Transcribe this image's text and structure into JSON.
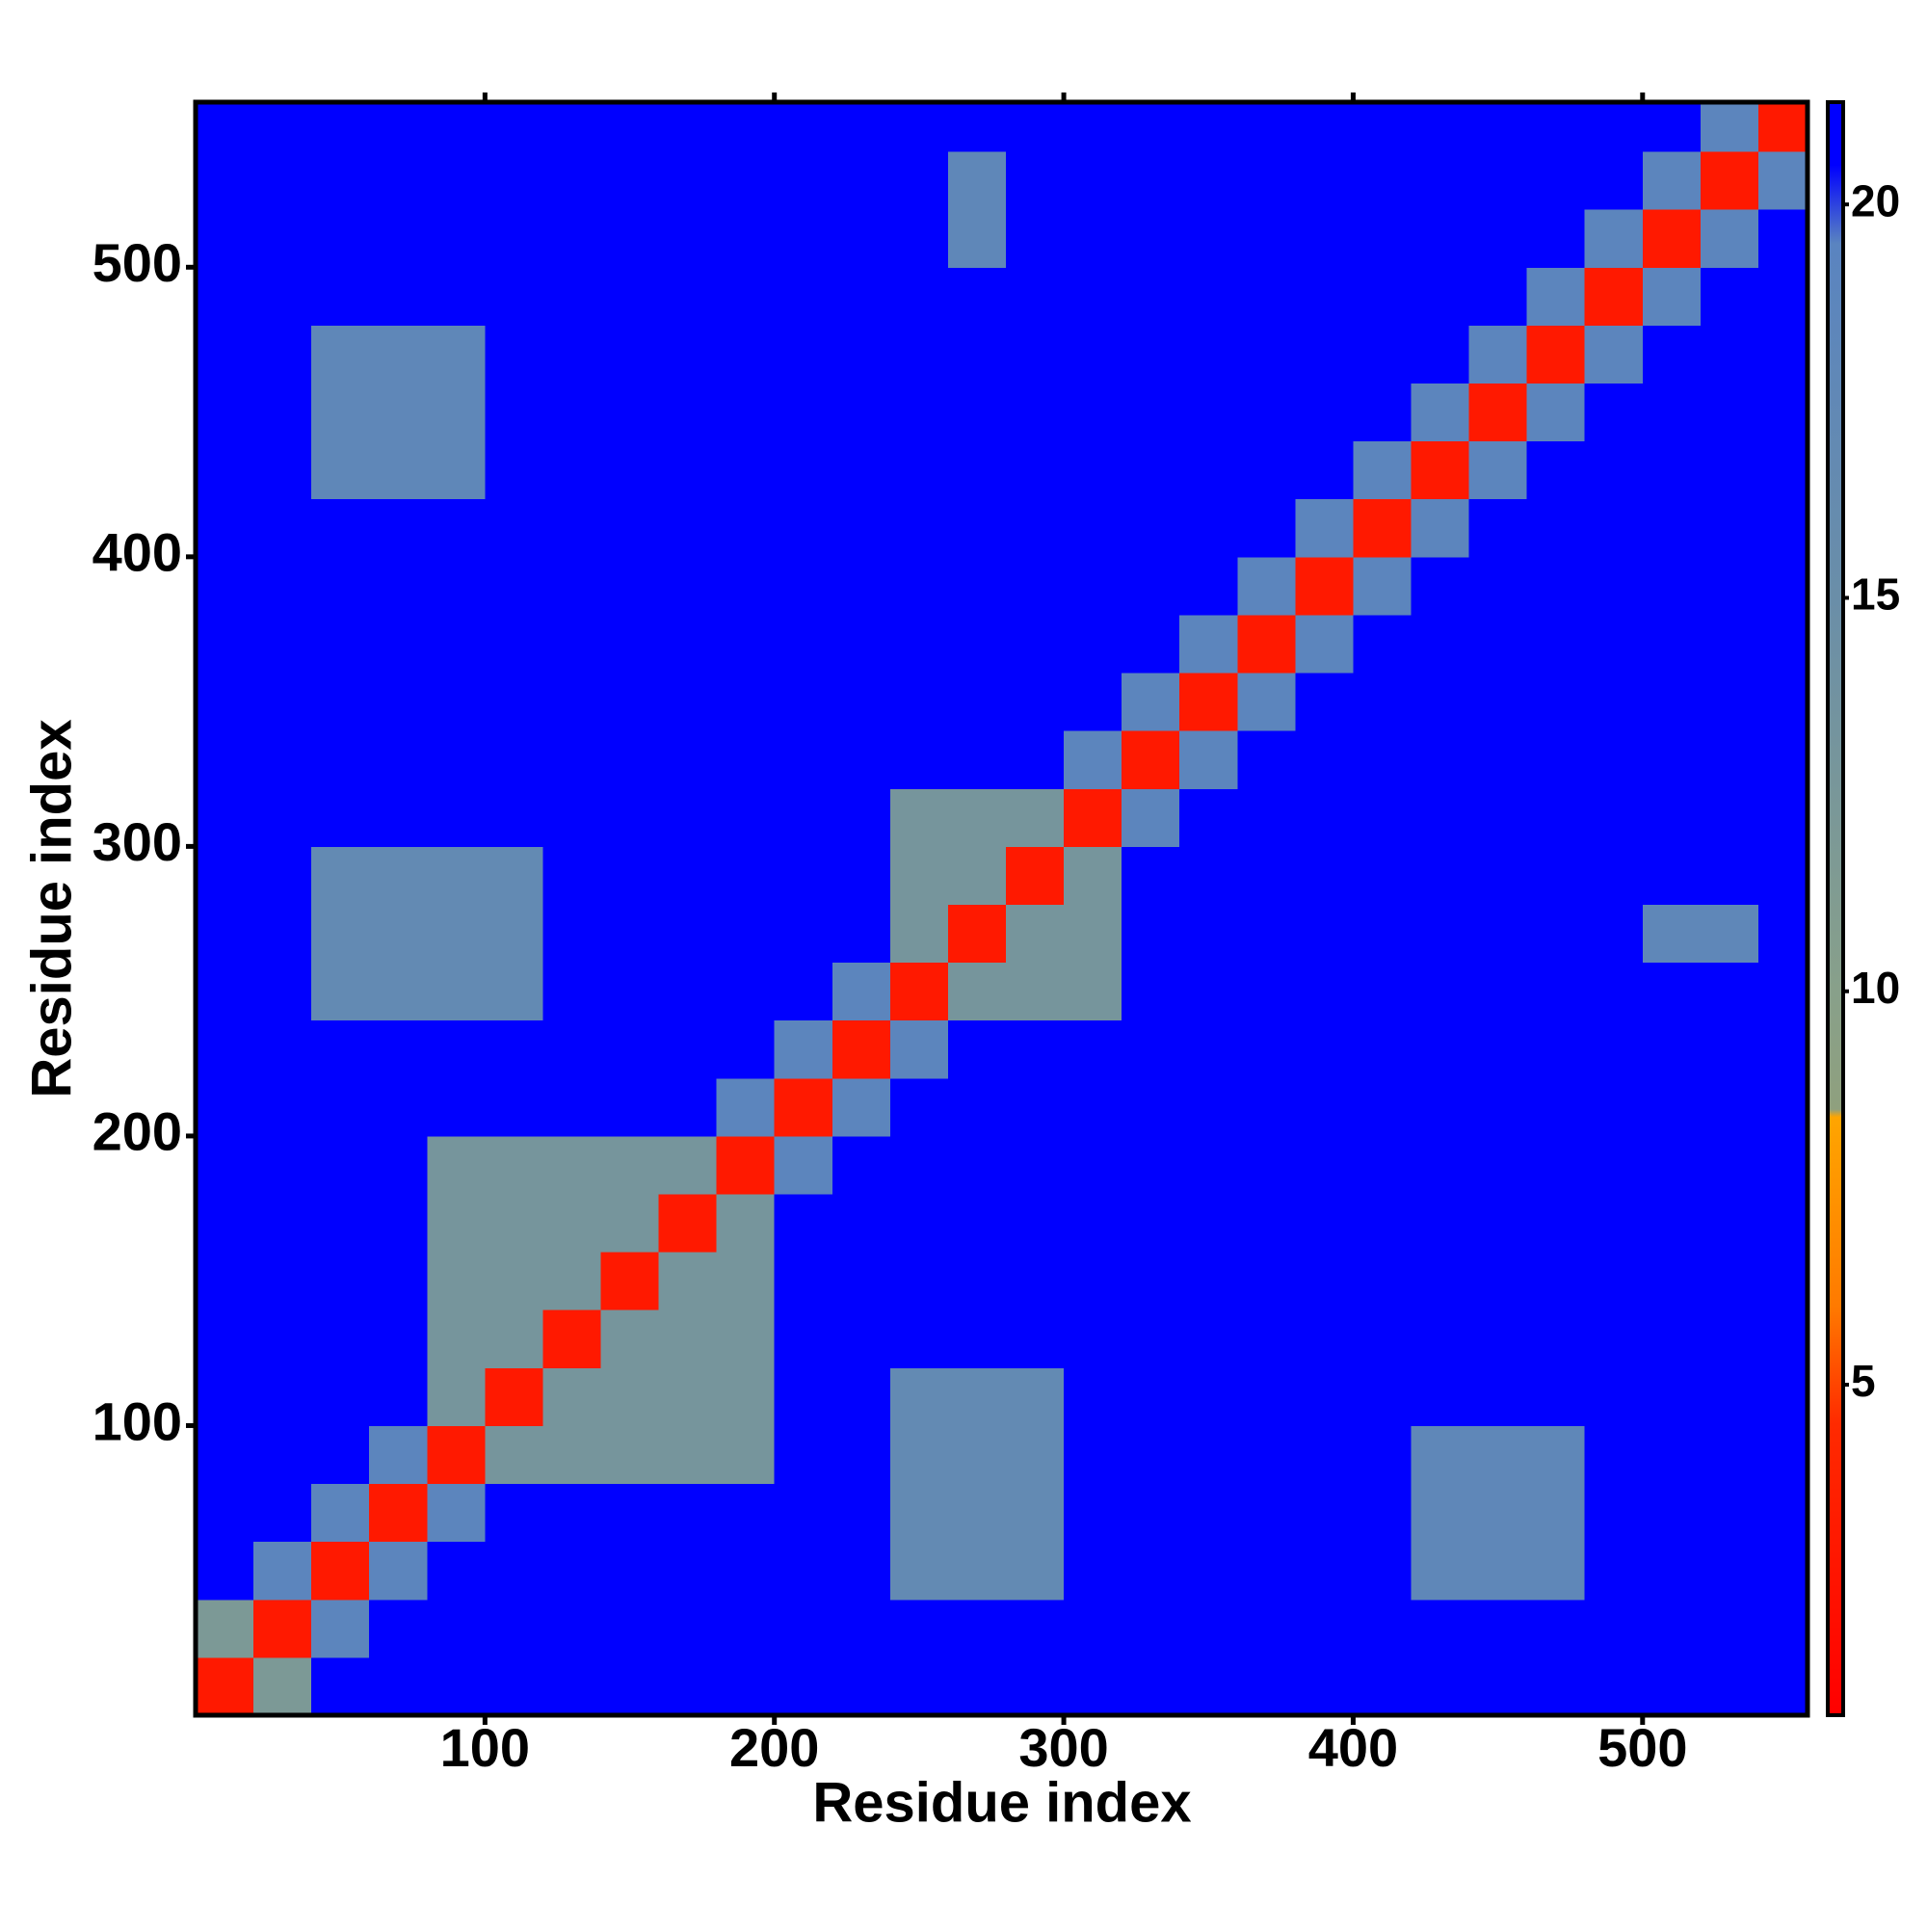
{
  "chart_data": {
    "type": "heatmap",
    "xlabel": "Residue index",
    "ylabel": "Residue index",
    "xlim": [
      0,
      557
    ],
    "ylim": [
      0,
      557
    ],
    "xticks": [
      100,
      200,
      300,
      400,
      500
    ],
    "yticks": [
      100,
      200,
      300,
      400,
      500
    ],
    "xbins": [
      0,
      20,
      40,
      60,
      80,
      100,
      120,
      140,
      160,
      180,
      200,
      220,
      240,
      260,
      280,
      300,
      320,
      340,
      360,
      380,
      400,
      420,
      440,
      460,
      480,
      500,
      520,
      540,
      557
    ],
    "ybins": [
      0,
      20,
      40,
      60,
      80,
      100,
      120,
      140,
      160,
      180,
      200,
      220,
      240,
      260,
      280,
      300,
      320,
      340,
      360,
      380,
      400,
      420,
      440,
      460,
      480,
      500,
      520,
      540,
      557
    ],
    "clim": [
      0.8,
      21.3
    ],
    "cticks": [
      5,
      10,
      15,
      20
    ],
    "colorscale": [
      {
        "value": 0.8,
        "color": "#ff0000"
      },
      {
        "value": 4.5,
        "color": "#ff2a00"
      },
      {
        "value": 6,
        "color": "#ff7a00"
      },
      {
        "value": 8.4,
        "color": "#ffa500"
      },
      {
        "value": 8.5,
        "color": "#8fa07e"
      },
      {
        "value": 10,
        "color": "#88a08a"
      },
      {
        "value": 15,
        "color": "#6a8ea8"
      },
      {
        "value": 19.5,
        "color": "#5a84c0"
      },
      {
        "value": 20.5,
        "color": "#0000ff"
      },
      {
        "value": 21.3,
        "color": "#0000ff"
      }
    ],
    "values": [
      [
        3,
        12,
        21,
        21,
        21,
        21,
        21,
        21,
        21,
        21,
        21,
        21,
        21,
        21,
        21,
        21,
        21,
        21,
        21,
        21,
        21,
        21,
        21,
        21,
        21,
        21,
        21,
        21
      ],
      [
        12,
        3,
        19,
        21,
        21,
        21,
        21,
        21,
        21,
        21,
        21,
        21,
        21,
        21,
        21,
        21,
        21,
        21,
        21,
        21,
        21,
        21,
        21,
        21,
        21,
        21,
        21,
        21
      ],
      [
        21,
        19,
        3,
        19,
        21,
        21,
        21,
        21,
        21,
        21,
        21,
        21,
        17,
        17,
        17,
        21,
        21,
        21,
        21,
        21,
        21,
        18,
        18,
        18,
        21,
        21,
        21,
        21
      ],
      [
        21,
        21,
        19,
        3,
        19,
        21,
        21,
        21,
        21,
        21,
        21,
        21,
        17,
        17,
        17,
        21,
        21,
        21,
        21,
        21,
        21,
        18,
        18,
        18,
        21,
        21,
        21,
        21
      ],
      [
        21,
        21,
        21,
        19,
        3,
        13,
        13,
        13,
        13,
        13,
        21,
        21,
        17,
        17,
        17,
        21,
        21,
        21,
        21,
        21,
        21,
        18,
        18,
        18,
        21,
        21,
        21,
        21
      ],
      [
        21,
        21,
        21,
        21,
        13,
        3,
        13,
        13,
        13,
        13,
        21,
        21,
        17,
        17,
        17,
        21,
        21,
        21,
        21,
        21,
        21,
        21,
        21,
        21,
        21,
        21,
        21,
        21
      ],
      [
        21,
        21,
        21,
        21,
        13,
        13,
        3,
        13,
        13,
        13,
        21,
        21,
        21,
        21,
        21,
        21,
        21,
        21,
        21,
        21,
        21,
        21,
        21,
        21,
        21,
        21,
        21,
        21
      ],
      [
        21,
        21,
        21,
        21,
        13,
        13,
        13,
        3,
        13,
        13,
        21,
        21,
        21,
        21,
        21,
        21,
        21,
        21,
        21,
        21,
        21,
        21,
        21,
        21,
        21,
        21,
        21,
        21
      ],
      [
        21,
        21,
        21,
        21,
        13,
        13,
        13,
        13,
        3,
        13,
        21,
        21,
        21,
        21,
        21,
        21,
        21,
        21,
        21,
        21,
        21,
        21,
        21,
        21,
        21,
        21,
        21,
        21
      ],
      [
        21,
        21,
        21,
        21,
        13,
        13,
        13,
        13,
        13,
        3,
        19,
        21,
        21,
        21,
        21,
        21,
        21,
        21,
        21,
        21,
        21,
        21,
        21,
        21,
        21,
        21,
        21,
        21
      ],
      [
        21,
        21,
        21,
        21,
        21,
        21,
        21,
        21,
        21,
        19,
        3,
        19,
        21,
        21,
        21,
        21,
        21,
        21,
        21,
        21,
        21,
        21,
        21,
        21,
        21,
        21,
        21,
        21
      ],
      [
        21,
        21,
        21,
        21,
        21,
        21,
        21,
        21,
        21,
        21,
        19,
        3,
        19,
        21,
        21,
        21,
        21,
        21,
        21,
        21,
        21,
        21,
        21,
        21,
        21,
        21,
        21,
        21
      ],
      [
        21,
        21,
        17,
        17,
        17,
        17,
        21,
        21,
        21,
        21,
        21,
        19,
        3,
        13,
        13,
        13,
        21,
        21,
        21,
        21,
        21,
        21,
        21,
        21,
        21,
        21,
        21,
        21
      ],
      [
        21,
        21,
        17,
        17,
        17,
        17,
        21,
        21,
        21,
        21,
        21,
        21,
        13,
        3,
        13,
        13,
        21,
        21,
        21,
        21,
        21,
        21,
        21,
        21,
        21,
        18,
        18,
        21
      ],
      [
        21,
        21,
        17,
        17,
        17,
        17,
        21,
        21,
        21,
        21,
        21,
        21,
        13,
        13,
        3,
        13,
        21,
        21,
        21,
        21,
        21,
        21,
        21,
        21,
        21,
        21,
        21,
        21
      ],
      [
        21,
        21,
        21,
        21,
        21,
        21,
        21,
        21,
        21,
        21,
        21,
        21,
        13,
        13,
        13,
        3,
        19,
        21,
        21,
        21,
        21,
        21,
        21,
        21,
        21,
        21,
        21,
        21
      ],
      [
        21,
        21,
        21,
        21,
        21,
        21,
        21,
        21,
        21,
        21,
        21,
        21,
        21,
        21,
        21,
        19,
        3,
        19,
        21,
        21,
        21,
        21,
        21,
        21,
        21,
        21,
        21,
        21
      ],
      [
        21,
        21,
        21,
        21,
        21,
        21,
        21,
        21,
        21,
        21,
        21,
        21,
        21,
        21,
        21,
        21,
        19,
        3,
        19,
        21,
        21,
        21,
        21,
        21,
        21,
        21,
        21,
        21
      ],
      [
        21,
        21,
        21,
        21,
        21,
        21,
        21,
        21,
        21,
        21,
        21,
        21,
        21,
        21,
        21,
        21,
        21,
        19,
        3,
        19,
        21,
        21,
        21,
        21,
        21,
        21,
        21,
        21
      ],
      [
        21,
        21,
        21,
        21,
        21,
        21,
        21,
        21,
        21,
        21,
        21,
        21,
        21,
        21,
        21,
        21,
        21,
        21,
        19,
        3,
        19,
        21,
        21,
        21,
        21,
        21,
        21,
        21
      ],
      [
        21,
        21,
        21,
        21,
        21,
        21,
        21,
        21,
        21,
        21,
        21,
        21,
        21,
        21,
        21,
        21,
        21,
        21,
        21,
        19,
        3,
        19,
        21,
        21,
        21,
        21,
        21,
        21
      ],
      [
        21,
        21,
        18,
        18,
        18,
        21,
        21,
        21,
        21,
        21,
        21,
        21,
        21,
        21,
        21,
        21,
        21,
        21,
        21,
        21,
        19,
        3,
        19,
        21,
        21,
        21,
        21,
        21
      ],
      [
        21,
        21,
        18,
        18,
        18,
        21,
        21,
        21,
        21,
        21,
        21,
        21,
        21,
        21,
        21,
        21,
        21,
        21,
        21,
        21,
        21,
        19,
        3,
        19,
        21,
        21,
        21,
        21
      ],
      [
        21,
        21,
        18,
        18,
        18,
        21,
        21,
        21,
        21,
        21,
        21,
        21,
        21,
        21,
        21,
        21,
        21,
        21,
        21,
        21,
        21,
        21,
        19,
        3,
        19,
        21,
        21,
        21
      ],
      [
        21,
        21,
        21,
        21,
        21,
        21,
        21,
        21,
        21,
        21,
        21,
        21,
        21,
        21,
        21,
        21,
        21,
        21,
        21,
        21,
        21,
        21,
        21,
        19,
        3,
        19,
        21,
        21
      ],
      [
        21,
        21,
        21,
        21,
        21,
        21,
        21,
        21,
        21,
        21,
        21,
        21,
        21,
        18,
        21,
        21,
        21,
        21,
        21,
        21,
        21,
        21,
        21,
        21,
        19,
        3,
        19,
        21
      ],
      [
        21,
        21,
        21,
        21,
        21,
        21,
        21,
        21,
        21,
        21,
        21,
        21,
        21,
        18,
        21,
        21,
        21,
        21,
        21,
        21,
        21,
        21,
        21,
        21,
        21,
        19,
        3,
        19
      ],
      [
        21,
        21,
        21,
        21,
        21,
        21,
        21,
        21,
        21,
        21,
        21,
        21,
        21,
        21,
        21,
        21,
        21,
        21,
        21,
        21,
        21,
        21,
        21,
        21,
        21,
        21,
        19,
        3
      ]
    ]
  }
}
